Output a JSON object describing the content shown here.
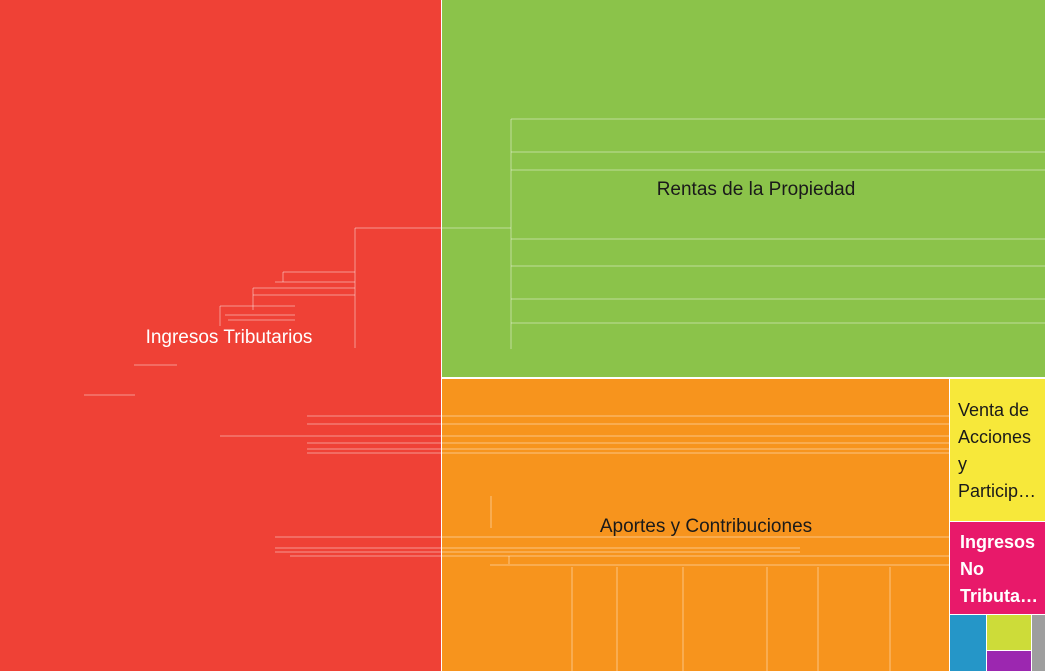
{
  "chart_data": {
    "type": "treemap",
    "categories": [
      {
        "label": "Ingresos Tributarios",
        "color": "#ef4136",
        "text_color": "#ffffff"
      },
      {
        "label": "Rentas de la Propiedad",
        "color": "#8bc34a",
        "text_color": "#1a1a1a"
      },
      {
        "label": "Aportes y Contribuciones",
        "color": "#f7941d",
        "text_color": "#1a1a1a"
      },
      {
        "label": "Venta de Acciones y Particip…",
        "color": "#f7e83a",
        "text_color": "#1a1a1a"
      },
      {
        "label": "Ingresos No Tributa…",
        "color": "#e8196a",
        "text_color": "#ffffff"
      },
      {
        "label": "",
        "color": "#2596c8",
        "text_color": "#ffffff"
      },
      {
        "label": "",
        "color": "#cddc39",
        "text_color": "#1a1a1a"
      },
      {
        "label": "",
        "color": "#9c27b0",
        "text_color": "#ffffff"
      },
      {
        "label": "",
        "color": "#9e9e9e",
        "text_color": "#ffffff"
      }
    ]
  }
}
